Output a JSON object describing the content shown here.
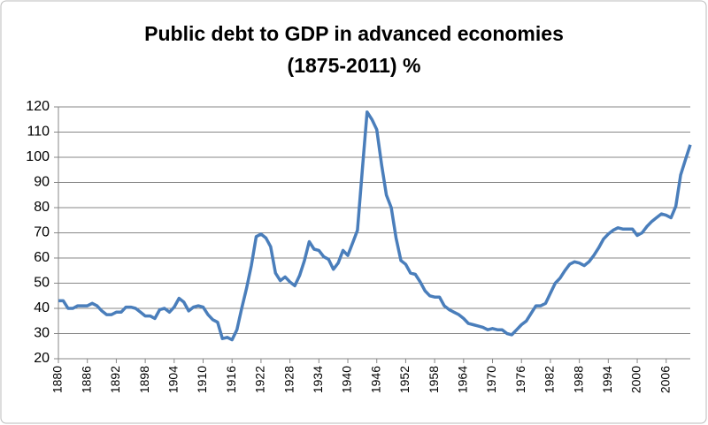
{
  "chart_data": {
    "type": "line",
    "title": [
      "Public debt to GDP in advanced economies",
      "(1875-2011) %"
    ],
    "x": [
      1880,
      1881,
      1882,
      1883,
      1884,
      1885,
      1886,
      1887,
      1888,
      1889,
      1890,
      1891,
      1892,
      1893,
      1894,
      1895,
      1896,
      1897,
      1898,
      1899,
      1900,
      1901,
      1902,
      1903,
      1904,
      1905,
      1906,
      1907,
      1908,
      1909,
      1910,
      1911,
      1912,
      1913,
      1914,
      1915,
      1916,
      1917,
      1918,
      1919,
      1920,
      1921,
      1922,
      1923,
      1924,
      1925,
      1926,
      1927,
      1928,
      1929,
      1930,
      1931,
      1932,
      1933,
      1934,
      1935,
      1936,
      1937,
      1938,
      1939,
      1940,
      1941,
      1942,
      1943,
      1944,
      1945,
      1946,
      1947,
      1948,
      1949,
      1950,
      1951,
      1952,
      1953,
      1954,
      1955,
      1956,
      1957,
      1958,
      1959,
      1960,
      1961,
      1962,
      1963,
      1964,
      1965,
      1966,
      1967,
      1968,
      1969,
      1970,
      1971,
      1972,
      1973,
      1974,
      1975,
      1976,
      1977,
      1978,
      1979,
      1980,
      1981,
      1982,
      1983,
      1984,
      1985,
      1986,
      1987,
      1988,
      1989,
      1990,
      1991,
      1992,
      1993,
      1994,
      1995,
      1996,
      1997,
      1998,
      1999,
      2000,
      2001,
      2002,
      2003,
      2004,
      2005,
      2006,
      2007,
      2008,
      2009,
      2010,
      2011
    ],
    "values": [
      43,
      43,
      40,
      40,
      41,
      41,
      41,
      42,
      41,
      39,
      37.5,
      37.5,
      38.5,
      38.5,
      40.5,
      40.5,
      40,
      38.5,
      37,
      37,
      36,
      39.5,
      40,
      38.5,
      40.5,
      44,
      42.5,
      39,
      40.5,
      41,
      40.5,
      37.5,
      35.5,
      34.5,
      28,
      28.5,
      27.5,
      31.5,
      40,
      48,
      57,
      68.5,
      69.5,
      68,
      64.5,
      54,
      51,
      52.5,
      50.5,
      49,
      53,
      59,
      66.5,
      63.5,
      63,
      60.5,
      59.5,
      55.5,
      58,
      63,
      61,
      66,
      71,
      95,
      118,
      115,
      111,
      97,
      85,
      80,
      68,
      59,
      57.5,
      54,
      53.5,
      50.5,
      47,
      45,
      44.5,
      44.5,
      41,
      39.5,
      38.5,
      37.5,
      36,
      34,
      33.5,
      33,
      32.5,
      31.5,
      32,
      31.5,
      31.5,
      30,
      29.5,
      31.5,
      33.5,
      35,
      38,
      41,
      41,
      42,
      46,
      50,
      52,
      55,
      57.5,
      58.5,
      58,
      57,
      58.5,
      61,
      64,
      67.5,
      69.5,
      71,
      72,
      71.5,
      71.5,
      71.5,
      69,
      70,
      72.5,
      74.5,
      76,
      77.5,
      77,
      76,
      80.5,
      93,
      99,
      105
    ],
    "color": "#4a7ebb",
    "xlim": [
      1880,
      2011
    ],
    "xticks": [
      1880,
      1886,
      1892,
      1898,
      1904,
      1910,
      1916,
      1922,
      1928,
      1934,
      1940,
      1946,
      1952,
      1958,
      1964,
      1970,
      1976,
      1982,
      1988,
      1994,
      2000,
      2006
    ],
    "ylim": [
      20,
      120
    ],
    "yticks": [
      20,
      30,
      40,
      50,
      60,
      70,
      80,
      90,
      100,
      110,
      120
    ],
    "grid": true
  }
}
